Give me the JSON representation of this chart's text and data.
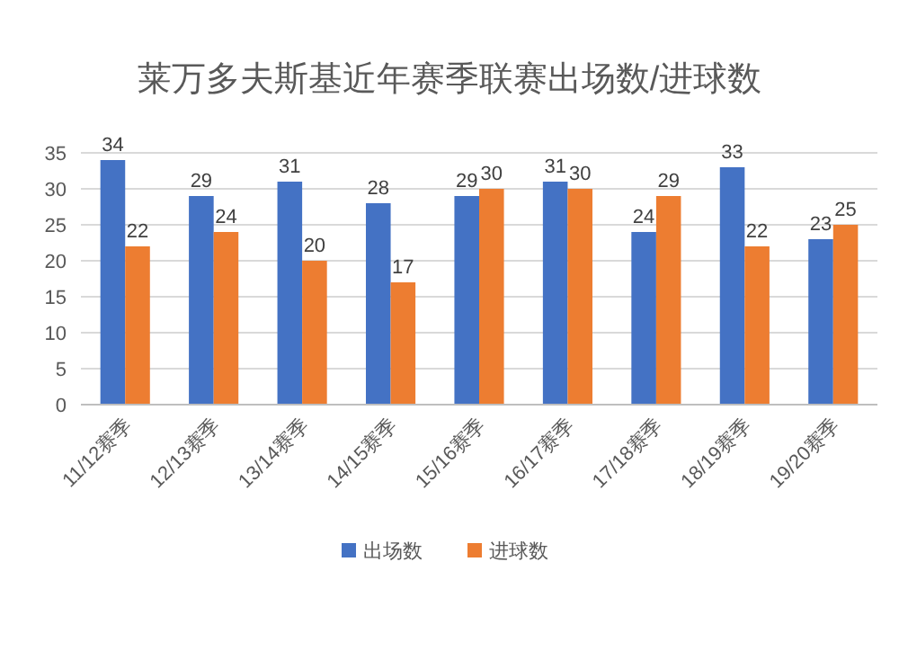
{
  "chart_data": {
    "type": "bar",
    "title": "莱万多夫斯基近年赛季联赛出场数/进球数",
    "categories": [
      "11/12赛季",
      "12/13赛季",
      "13/14赛季",
      "14/15赛季",
      "15/16赛季",
      "16/17赛季",
      "17/18赛季",
      "18/19赛季",
      "19/20赛季"
    ],
    "series": [
      {
        "name": "出场数",
        "color": "#4472c4",
        "values": [
          34,
          29,
          31,
          28,
          29,
          31,
          24,
          33,
          23
        ]
      },
      {
        "name": "进球数",
        "color": "#ed7d31",
        "values": [
          22,
          24,
          20,
          17,
          30,
          30,
          29,
          22,
          25
        ]
      }
    ],
    "ylim": [
      0,
      35
    ],
    "yticks": [
      0,
      5,
      10,
      15,
      20,
      25,
      30,
      35
    ],
    "grid": "y",
    "data_labels": true,
    "legend": "bottom"
  }
}
